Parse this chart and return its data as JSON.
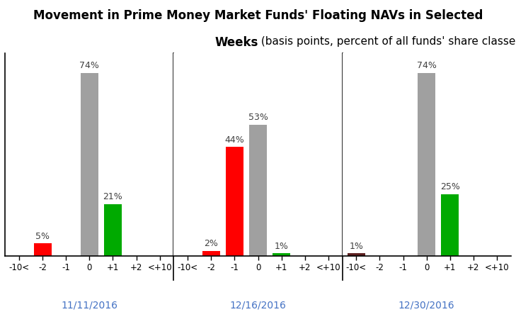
{
  "groups": [
    "11/11/2016",
    "12/16/2016",
    "12/30/2016"
  ],
  "categories": [
    "-10<",
    "-2",
    "-1",
    "0",
    "+1",
    "+2",
    "<+10"
  ],
  "data": [
    [
      0,
      5,
      0,
      74,
      21,
      0,
      0
    ],
    [
      0,
      2,
      44,
      53,
      1,
      0,
      0
    ],
    [
      1,
      0,
      0,
      74,
      25,
      0,
      0
    ]
  ],
  "bar_colors": [
    [
      "#a0a0a0",
      "#ff0000",
      "#a0a0a0",
      "#a0a0a0",
      "#00aa00",
      "#a0a0a0",
      "#a0a0a0"
    ],
    [
      "#a0a0a0",
      "#ff0000",
      "#ff0000",
      "#a0a0a0",
      "#00aa00",
      "#a0a0a0",
      "#a0a0a0"
    ],
    [
      "#5c2020",
      "#a0a0a0",
      "#a0a0a0",
      "#a0a0a0",
      "#00aa00",
      "#a0a0a0",
      "#a0a0a0"
    ]
  ],
  "background_color": "#ffffff",
  "title_line1": "Movement in Prime Money Market Funds' Floating NAVs in Selected",
  "title_line2_bold": "Weeks",
  "title_line2_normal": " (basis points, percent of all funds' share classes)",
  "title_fontsize": 12,
  "label_fontsize": 9,
  "tick_fontsize": 8.5,
  "date_fontsize": 10,
  "bar_width": 0.75,
  "ylim": [
    0,
    82
  ],
  "date_color": "#4472c4",
  "label_color": "#404040",
  "gray_color": "#a0a0a0"
}
